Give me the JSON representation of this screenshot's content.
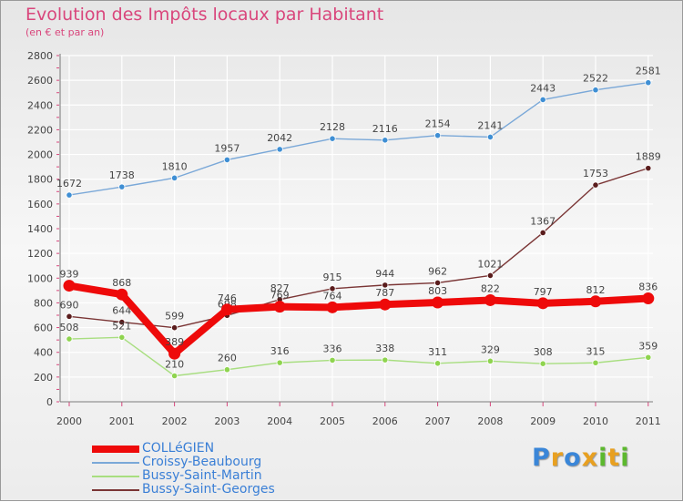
{
  "title": "Evolution des Impôts locaux par Habitant",
  "subtitle": "(en € et par an)",
  "logo": {
    "letters": [
      "P",
      "r",
      "o",
      "x",
      "i",
      "t",
      "i"
    ],
    "colors": [
      "#3a86d8",
      "#e8a020",
      "#3a86d8",
      "#e8a020",
      "#5cb82e",
      "#e8a020",
      "#5cb82e"
    ]
  },
  "chart_data": {
    "type": "line",
    "x": [
      "2000",
      "2001",
      "2002",
      "2003",
      "2004",
      "2005",
      "2006",
      "2007",
      "2008",
      "2009",
      "2010",
      "2011"
    ],
    "ylim": [
      0,
      2800
    ],
    "yticks": [
      "0",
      "200",
      "400",
      "600",
      "800",
      "1000",
      "1200",
      "1400",
      "1600",
      "1800",
      "2000",
      "2200",
      "2400",
      "2600",
      "2800"
    ],
    "grid": true,
    "legend_position": "bottom-left",
    "series": [
      {
        "name": "Croissy-Beaubourg",
        "color": "#7aa8d8",
        "marker": "#3f8fd4",
        "values": [
          1672,
          1738,
          1810,
          1957,
          2042,
          2128,
          2116,
          2154,
          2141,
          2443,
          2522,
          2581
        ]
      },
      {
        "name": "Bussy-Saint-Georges",
        "color": "#7a3535",
        "marker": "#5a1c1c",
        "values": [
          690,
          644,
          599,
          698,
          827,
          915,
          944,
          962,
          1021,
          1367,
          1753,
          1889
        ]
      },
      {
        "name": "Bussy-Saint-Martin",
        "color": "#a8de80",
        "marker": "#8fd44f",
        "values": [
          508,
          521,
          210,
          260,
          316,
          336,
          338,
          311,
          329,
          308,
          315,
          359
        ]
      },
      {
        "name": "COLLéGIEN",
        "color": "#ee0a0a",
        "marker": "#ee0a0a",
        "values": [
          939,
          868,
          389,
          746,
          769,
          764,
          787,
          803,
          822,
          797,
          812,
          836
        ]
      }
    ],
    "legend_order": [
      "COLLéGIEN",
      "Croissy-Beaubourg",
      "Bussy-Saint-Martin",
      "Bussy-Saint-Georges"
    ]
  }
}
